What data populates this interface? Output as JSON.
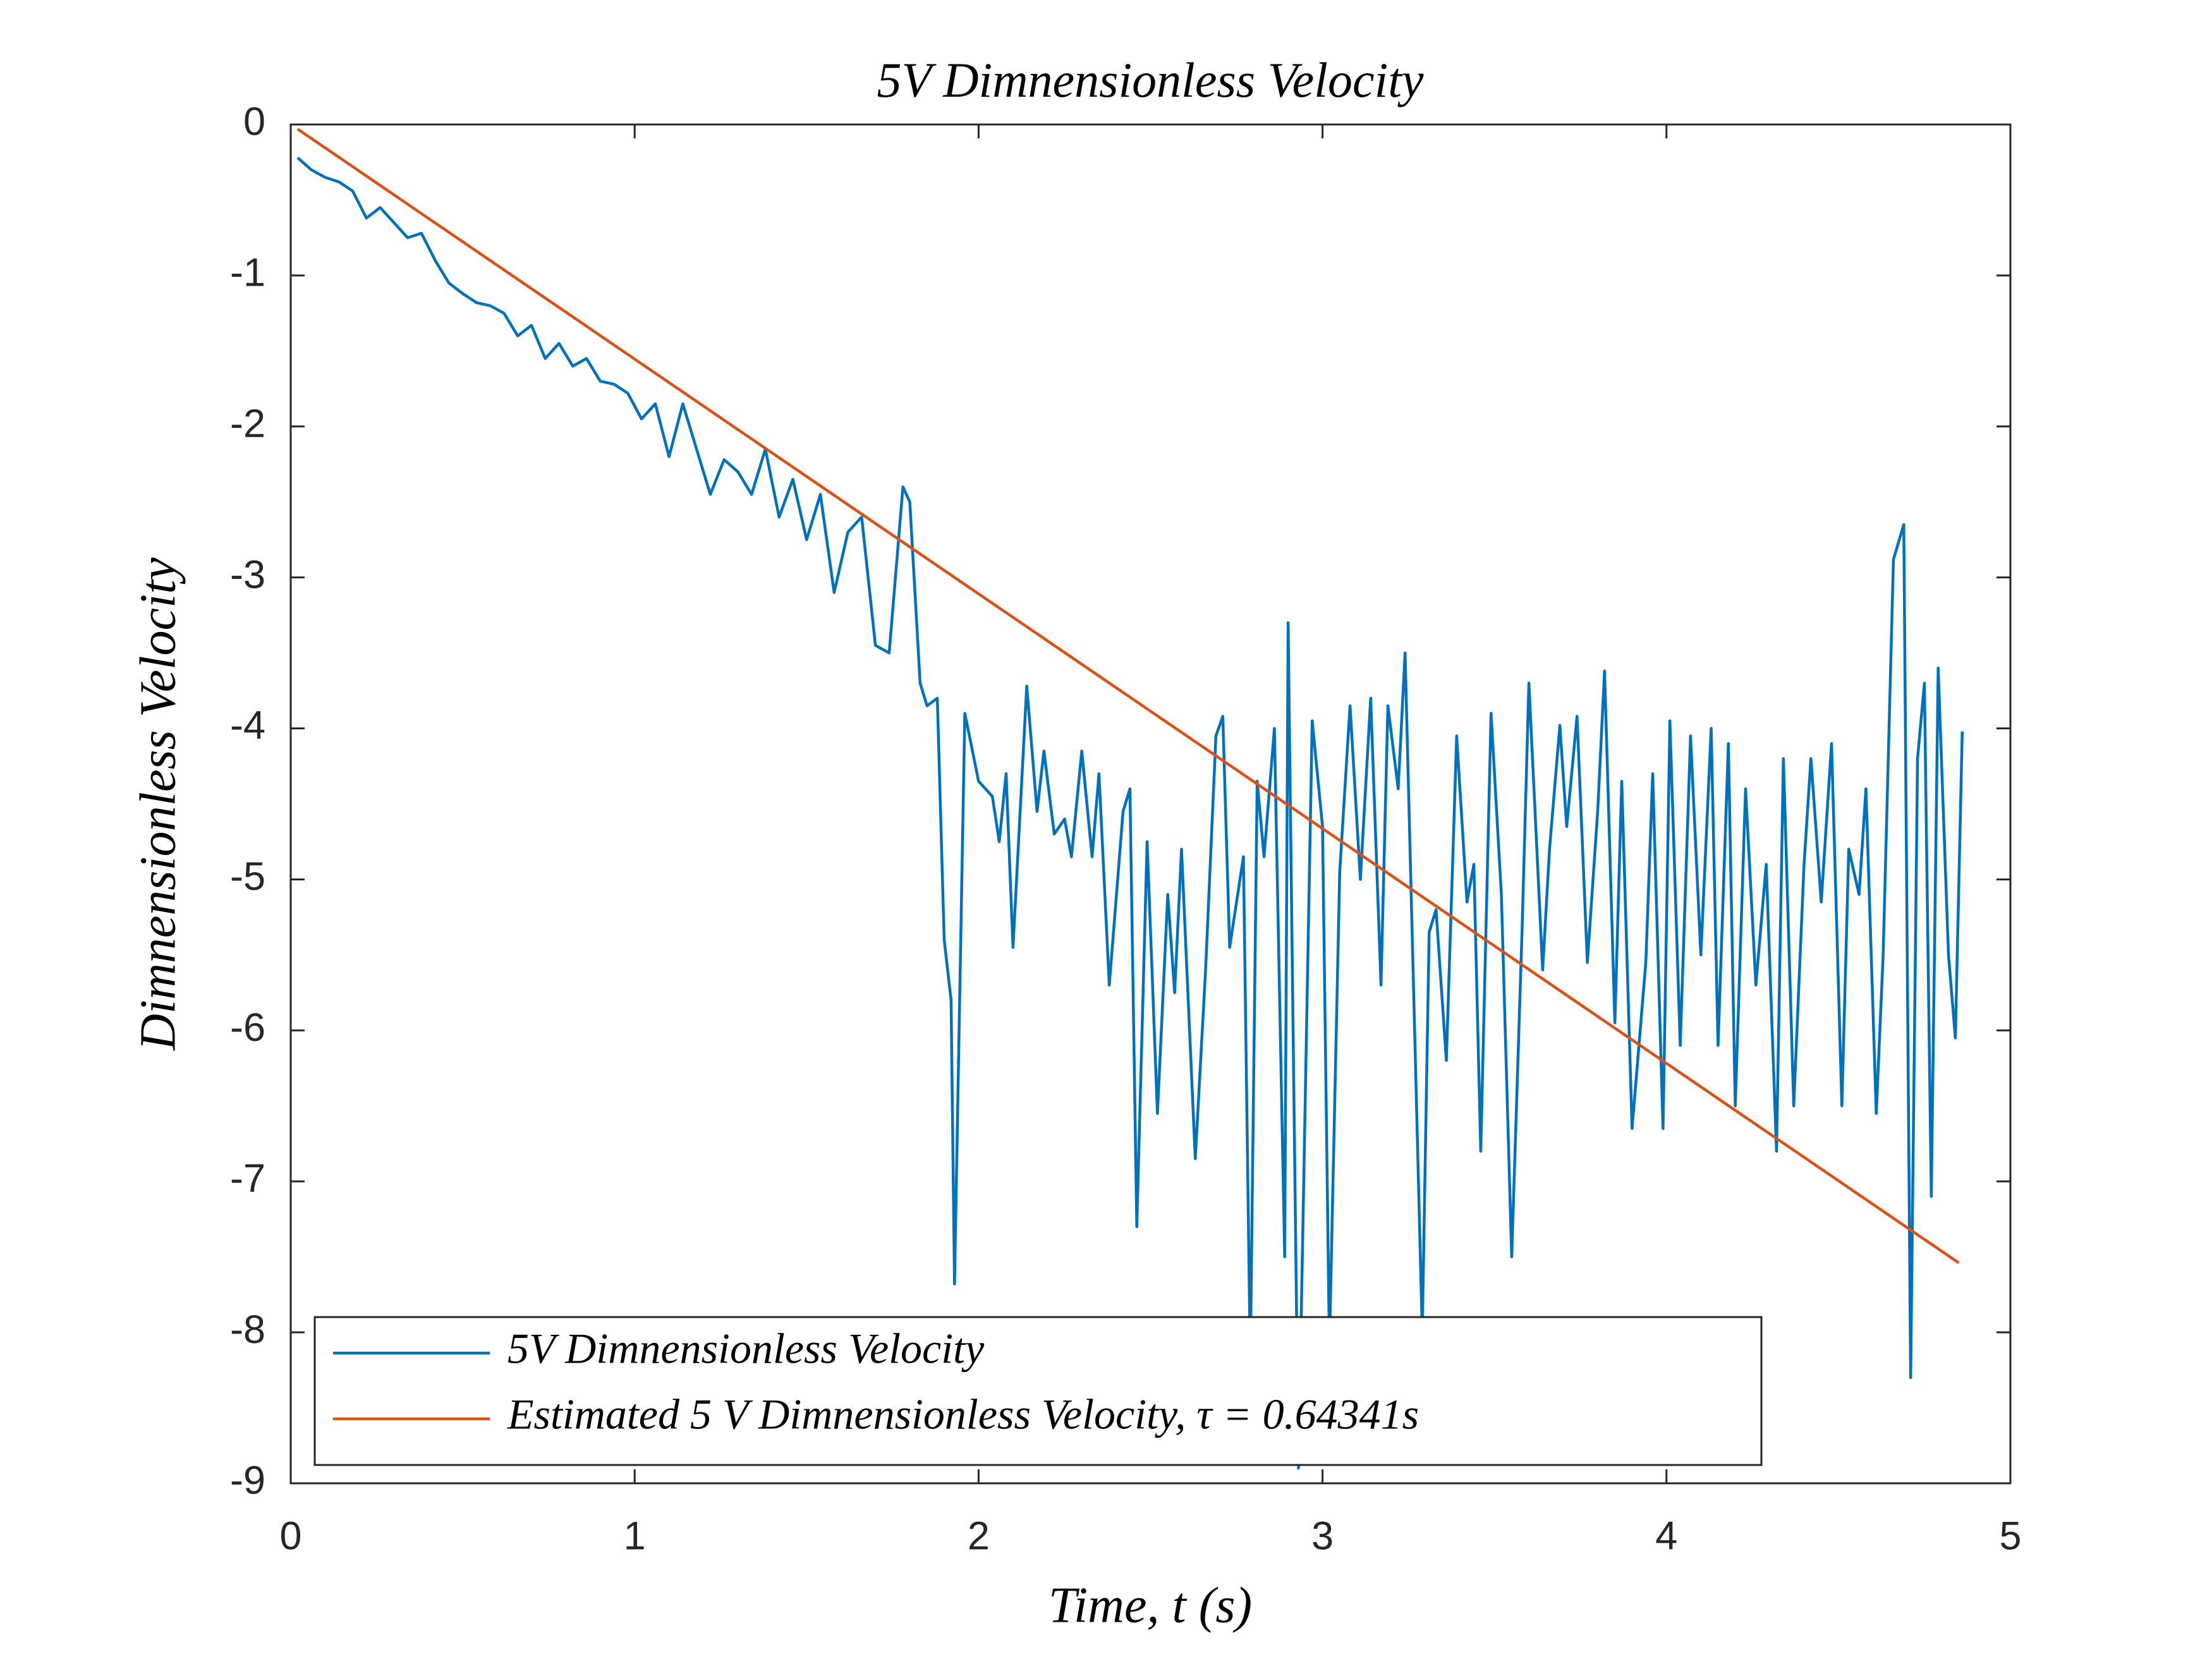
{
  "chart_data": {
    "type": "line",
    "title": "5V Dimnensionless Velocity",
    "xlabel": "Time, t (s)",
    "ylabel": "Dimnensionless Velocity",
    "xlim": [
      0,
      5
    ],
    "xticks": [
      0,
      1,
      2,
      3,
      4,
      5
    ],
    "ylim": [
      -9,
      0
    ],
    "yticks": [
      0,
      -1,
      -2,
      -3,
      -4,
      -5,
      -6,
      -7,
      -8,
      -9
    ],
    "legend": "southwest",
    "series": [
      {
        "name": "5V Dimnensionless Velocity",
        "color": "#0072BD",
        "x": [
          0.02,
          0.06,
          0.1,
          0.14,
          0.18,
          0.22,
          0.26,
          0.3,
          0.34,
          0.38,
          0.42,
          0.46,
          0.5,
          0.54,
          0.58,
          0.62,
          0.66,
          0.7,
          0.74,
          0.78,
          0.82,
          0.86,
          0.9,
          0.94,
          0.98,
          1.02,
          1.06,
          1.1,
          1.14,
          1.18,
          1.22,
          1.26,
          1.3,
          1.34,
          1.38,
          1.42,
          1.46,
          1.5,
          1.54,
          1.58,
          1.62,
          1.66,
          1.7,
          1.74,
          1.78,
          1.8,
          1.83,
          1.85,
          1.88,
          1.9,
          1.92,
          1.93,
          1.96,
          2.0,
          2.04,
          2.06,
          2.08,
          2.1,
          2.14,
          2.17,
          2.19,
          2.22,
          2.25,
          2.27,
          2.3,
          2.33,
          2.35,
          2.38,
          2.42,
          2.44,
          2.46,
          2.49,
          2.52,
          2.55,
          2.57,
          2.59,
          2.63,
          2.66,
          2.69,
          2.71,
          2.73,
          2.77,
          2.79,
          2.81,
          2.83,
          2.86,
          2.89,
          2.9,
          2.93,
          2.97,
          3.0,
          3.02,
          3.05,
          3.08,
          3.11,
          3.14,
          3.17,
          3.19,
          3.22,
          3.24,
          3.29,
          3.31,
          3.33,
          3.36,
          3.39,
          3.42,
          3.44,
          3.46,
          3.49,
          3.52,
          3.55,
          3.58,
          3.6,
          3.64,
          3.66,
          3.69,
          3.71,
          3.74,
          3.77,
          3.8,
          3.82,
          3.85,
          3.87,
          3.9,
          3.94,
          3.96,
          3.99,
          4.01,
          4.04,
          4.07,
          4.1,
          4.13,
          4.15,
          4.18,
          4.2,
          4.23,
          4.26,
          4.29,
          4.32,
          4.34,
          4.37,
          4.4,
          4.42,
          4.45,
          4.48,
          4.51,
          4.53,
          4.56,
          4.58,
          4.61,
          4.63,
          4.66,
          4.69,
          4.71,
          4.73,
          4.75,
          4.77,
          4.79,
          4.82,
          4.84,
          4.86
        ],
        "values": [
          -0.22,
          -0.3,
          -0.35,
          -0.38,
          -0.44,
          -0.62,
          -0.55,
          -0.65,
          -0.75,
          -0.72,
          -0.9,
          -1.05,
          -1.12,
          -1.18,
          -1.2,
          -1.25,
          -1.4,
          -1.33,
          -1.55,
          -1.45,
          -1.6,
          -1.55,
          -1.7,
          -1.72,
          -1.78,
          -1.95,
          -1.85,
          -2.2,
          -1.85,
          -2.15,
          -2.45,
          -2.22,
          -2.3,
          -2.45,
          -2.15,
          -2.6,
          -2.35,
          -2.75,
          -2.45,
          -3.1,
          -2.7,
          -2.6,
          -3.45,
          -3.5,
          -2.4,
          -2.5,
          -3.7,
          -3.85,
          -3.8,
          -5.4,
          -5.8,
          -7.68,
          -3.9,
          -4.35,
          -4.45,
          -4.75,
          -4.3,
          -5.45,
          -3.72,
          -4.55,
          -4.15,
          -4.7,
          -4.6,
          -4.85,
          -4.15,
          -4.85,
          -4.3,
          -5.7,
          -4.55,
          -4.4,
          -7.3,
          -4.75,
          -6.55,
          -5.1,
          -5.75,
          -4.8,
          -6.85,
          -5.6,
          -4.05,
          -3.92,
          -5.45,
          -4.85,
          -8.2,
          -4.35,
          -4.85,
          -4.0,
          -7.5,
          -3.3,
          -8.9,
          -3.95,
          -4.65,
          -8.1,
          -4.95,
          -3.85,
          -5.0,
          -3.8,
          -5.7,
          -3.85,
          -4.4,
          -3.5,
          -8.0,
          -5.35,
          -5.2,
          -6.2,
          -4.05,
          -5.15,
          -4.9,
          -6.8,
          -3.9,
          -5.1,
          -7.5,
          -5.35,
          -3.7,
          -5.6,
          -4.8,
          -3.98,
          -4.65,
          -3.92,
          -5.55,
          -4.55,
          -3.62,
          -5.95,
          -4.35,
          -6.65,
          -5.55,
          -4.3,
          -6.65,
          -3.95,
          -6.1,
          -4.05,
          -5.5,
          -4.0,
          -6.1,
          -4.1,
          -6.5,
          -4.4,
          -5.7,
          -4.9,
          -6.8,
          -4.2,
          -6.5,
          -4.9,
          -4.2,
          -5.15,
          -4.1,
          -6.5,
          -4.8,
          -5.1,
          -4.4,
          -6.55,
          -5.5,
          -2.88,
          -2.65,
          -8.3,
          -4.2,
          -3.7,
          -7.1,
          -3.6,
          -5.5,
          -6.05,
          -4.02
        ]
      },
      {
        "name": "Estimated 5 V  Dimnensionless  Velocity,  τ =  0.64341s",
        "color": "#D95319",
        "x": [
          0.02,
          4.85
        ],
        "values": [
          -0.03,
          -7.54
        ]
      }
    ]
  }
}
